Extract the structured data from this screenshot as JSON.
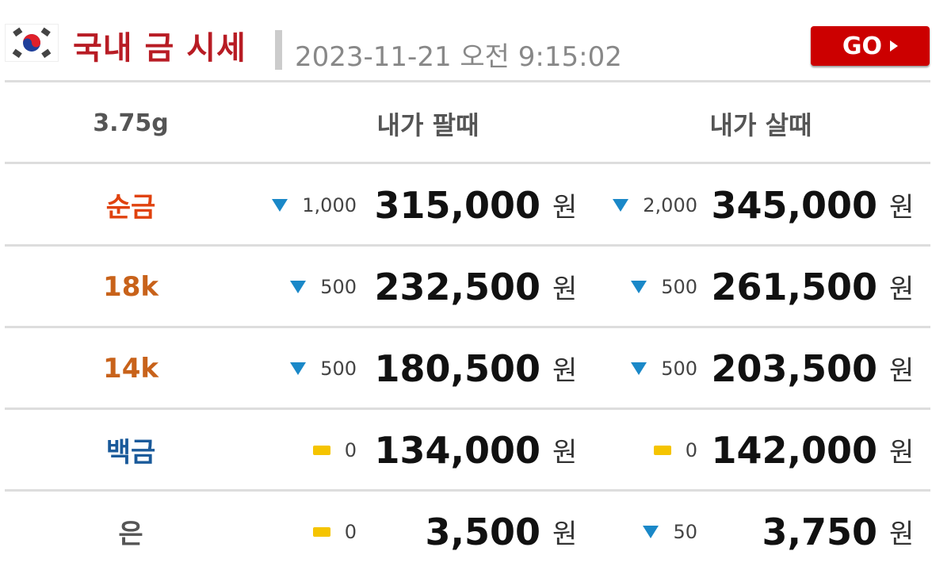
{
  "header": {
    "title": "국내 금 시세",
    "datetime": "2023-11-21 오전 9:15:02",
    "go_label": "GO",
    "flag_icon": "korea-flag-icon"
  },
  "table": {
    "columns": [
      "3.75g",
      "내가 팔때",
      "내가 살때"
    ],
    "currency": "원",
    "rows": [
      {
        "label": "순금",
        "label_color": "#e0420e",
        "sell_trend": "down",
        "sell_change": "1,000",
        "sell": "315,000",
        "buy_trend": "down",
        "buy_change": "2,000",
        "buy": "345,000"
      },
      {
        "label": "18k",
        "label_color": "#c8621a",
        "sell_trend": "down",
        "sell_change": "500",
        "sell": "232,500",
        "buy_trend": "down",
        "buy_change": "500",
        "buy": "261,500"
      },
      {
        "label": "14k",
        "label_color": "#c8621a",
        "sell_trend": "down",
        "sell_change": "500",
        "sell": "180,500",
        "buy_trend": "down",
        "buy_change": "500",
        "buy": "203,500"
      },
      {
        "label": "백금",
        "label_color": "#1a5a9a",
        "sell_trend": "flat",
        "sell_change": "0",
        "sell": "134,000",
        "buy_trend": "flat",
        "buy_change": "0",
        "buy": "142,000"
      },
      {
        "label": "은",
        "label_color": "#555555",
        "sell_trend": "flat",
        "sell_change": "0",
        "sell": "3,500",
        "buy_trend": "down",
        "buy_change": "50",
        "buy": "3,750"
      }
    ]
  },
  "colors": {
    "down": "#1a88c8",
    "flat": "#f5c400",
    "title": "#b81c24",
    "go": "#cc0000"
  }
}
